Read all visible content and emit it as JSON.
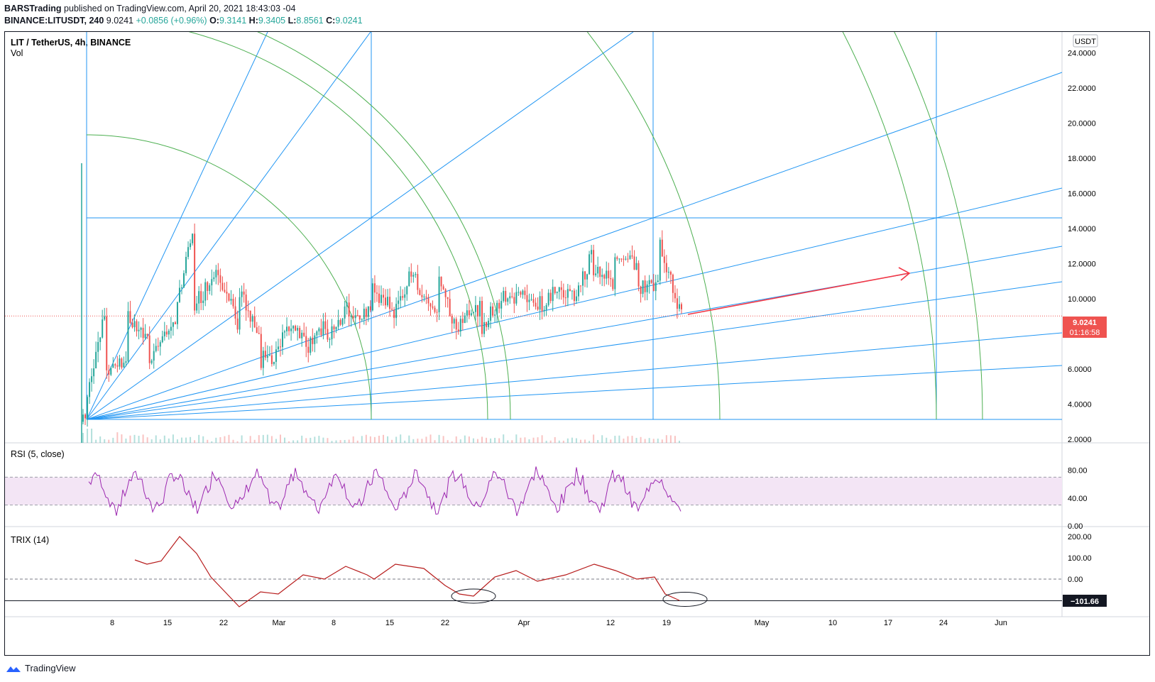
{
  "header": {
    "publisher": "BARSTrading",
    "published_text": "published on TradingView.com, April 20, 2021 18:43:03 -04",
    "symbol": "BINANCE:LITUSDT, 240",
    "last": "9.0241",
    "change": "+0.0856 (+0.96%)",
    "o_label": "O:",
    "o_value": "9.3141",
    "h_label": "H:",
    "h_value": "9.3405",
    "l_label": "L:",
    "l_value": "8.8561",
    "c_label": "C:",
    "c_value": "9.0241"
  },
  "legend": {
    "title": "LIT / TetherUS, 4h, BINANCE",
    "vol": "Vol"
  },
  "rsi_label": "RSI (5, close)",
  "trix_label": "TRIX (14)",
  "currency": "USDT",
  "price_tag": {
    "value": "9.0241",
    "countdown": "01:16:58"
  },
  "trix_tag": "−101.66",
  "footer": {
    "brand": "TradingView"
  },
  "colors": {
    "up": "#26a69a",
    "down": "#ef5350",
    "gann": "#2196f3",
    "arc": "#4caf50",
    "rsi": "#9c27b0",
    "trix": "#b71c1c",
    "arrow": "#f23645"
  },
  "chart_data": [
    {
      "type": "candlestick",
      "title": "LIT / TetherUS, 4h, BINANCE",
      "y_ticks": [
        "24.0000",
        "22.0000",
        "20.0000",
        "18.0000",
        "16.0000",
        "14.0000",
        "12.0000",
        "10.0000",
        "8.0000",
        "6.0000",
        "4.0000",
        "2.0000"
      ],
      "x_ticks": [
        "8",
        "15",
        "22",
        "Mar",
        "8",
        "15",
        "22",
        "Apr",
        "12",
        "19",
        "May",
        "10",
        "17",
        "24",
        "Jun"
      ],
      "ylim": [
        1.8,
        25.2
      ],
      "series": [
        {
          "name": "LIT / TetherUS",
          "values": [
            [
              3.0,
              3.3
            ],
            [
              5.5,
              9.5
            ],
            [
              9.2,
              6.8
            ],
            [
              6.5,
              7.5
            ],
            [
              7.8,
              8.5
            ],
            [
              9.5,
              14.5
            ],
            [
              12.0,
              11.5
            ],
            [
              10.5,
              8.5
            ],
            [
              6.5,
              8.0
            ],
            [
              8.5,
              7.0
            ],
            [
              7.2,
              7.8
            ],
            [
              8.0,
              8.5
            ],
            [
              8.8,
              9.5
            ],
            [
              10.5,
              9.5
            ],
            [
              9.2,
              9.8
            ],
            [
              11.0,
              12.0
            ],
            [
              11.0,
              9.5
            ],
            [
              9.0,
              8.0
            ],
            [
              8.5,
              9.5
            ],
            [
              9.8,
              10.2
            ],
            [
              10.0,
              10.5
            ],
            [
              10.2,
              9.5
            ],
            [
              9.8,
              10.5
            ],
            [
              11.5,
              12.5
            ],
            [
              12.0,
              11.0
            ],
            [
              10.5,
              12.0
            ],
            [
              13.0,
              11.0
            ],
            [
              9.5,
              9.0
            ]
          ]
        }
      ]
    },
    {
      "type": "line",
      "title": "RSI (5, close)",
      "y_ticks": [
        "80.00",
        "40.00",
        "0.00"
      ],
      "band": [
        30,
        70
      ],
      "ylim": [
        0,
        100
      ]
    },
    {
      "type": "line",
      "title": "TRIX (14)",
      "y_ticks": [
        "200.00",
        "100.00",
        "0.00"
      ],
      "last_value": -101.66,
      "ylim": [
        -130,
        220
      ]
    }
  ]
}
